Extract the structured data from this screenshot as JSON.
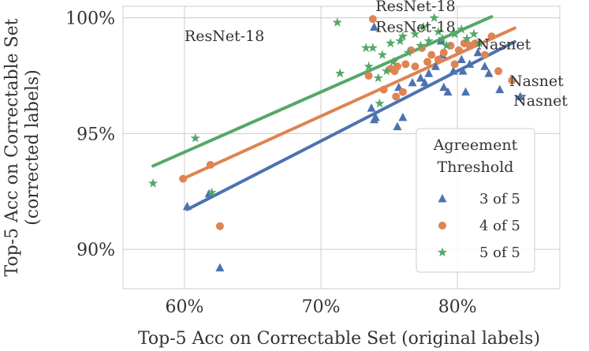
{
  "chart_data": {
    "type": "scatter",
    "xlabel": "Top-5 Acc on Correctable Set (original labels)",
    "ylabel_lines": [
      "Top-5 Acc on Correctable Set",
      "(corrected labels)"
    ],
    "xlim": [
      55.5,
      87.5
    ],
    "ylim": [
      88.3,
      100.5
    ],
    "x_ticks": [
      60,
      70,
      80
    ],
    "x_tick_labels": [
      "60%",
      "70%",
      "80%"
    ],
    "y_ticks": [
      90,
      95,
      100
    ],
    "y_tick_labels": [
      "90%",
      "95%",
      "100%"
    ],
    "grid": true,
    "legend": {
      "title_lines": [
        "Agreement",
        "Threshold"
      ],
      "position": "lower-right"
    },
    "series": [
      {
        "name": "3 of 5",
        "color": "#4c72b0",
        "marker": "triangle",
        "fit": {
          "x0": 60.2,
          "y0": 91.72,
          "x1": 84.2,
          "y1": 98.97
        },
        "points": [
          [
            60.2,
            91.85
          ],
          [
            61.8,
            92.4
          ],
          [
            62.6,
            89.2
          ],
          [
            73.7,
            96.1
          ],
          [
            73.9,
            95.6
          ],
          [
            74.0,
            95.7
          ],
          [
            73.9,
            99.6
          ],
          [
            75.6,
            95.3
          ],
          [
            76.0,
            95.7
          ],
          [
            75.7,
            97.0
          ],
          [
            76.7,
            97.2
          ],
          [
            77.3,
            97.4
          ],
          [
            77.6,
            97.2
          ],
          [
            77.9,
            97.6
          ],
          [
            78.4,
            97.9
          ],
          [
            78.9,
            98.4
          ],
          [
            79.0,
            97.0
          ],
          [
            79.3,
            96.8
          ],
          [
            79.7,
            97.7
          ],
          [
            80.3,
            98.2
          ],
          [
            80.4,
            97.7
          ],
          [
            80.6,
            96.8
          ],
          [
            80.9,
            98.0
          ],
          [
            81.5,
            98.5
          ],
          [
            82.0,
            97.9
          ],
          [
            82.3,
            97.6
          ],
          [
            83.1,
            96.9
          ],
          [
            84.6,
            96.6
          ],
          [
            78.8,
            99.0
          ]
        ]
      },
      {
        "name": "4 of 5",
        "color": "#dd8452",
        "marker": "circle",
        "fit": {
          "x0": 59.9,
          "y0": 93.05,
          "x1": 84.2,
          "y1": 99.56
        },
        "points": [
          [
            59.9,
            93.05
          ],
          [
            61.9,
            93.65
          ],
          [
            62.6,
            91.0
          ],
          [
            73.5,
            97.5
          ],
          [
            73.8,
            99.95
          ],
          [
            74.6,
            96.9
          ],
          [
            75.1,
            97.8
          ],
          [
            75.4,
            97.7
          ],
          [
            75.5,
            96.6
          ],
          [
            75.6,
            97.9
          ],
          [
            76.0,
            96.8
          ],
          [
            76.2,
            98.0
          ],
          [
            76.6,
            98.6
          ],
          [
            76.9,
            97.9
          ],
          [
            77.4,
            98.7
          ],
          [
            77.8,
            98.1
          ],
          [
            78.1,
            98.4
          ],
          [
            78.6,
            98.2
          ],
          [
            79.0,
            98.5
          ],
          [
            79.5,
            98.8
          ],
          [
            79.8,
            98.0
          ],
          [
            80.1,
            98.6
          ],
          [
            80.5,
            98.9
          ],
          [
            80.9,
            98.8
          ],
          [
            81.3,
            98.9
          ],
          [
            82.0,
            98.4
          ],
          [
            83.0,
            97.7
          ],
          [
            84.0,
            97.3
          ],
          [
            82.5,
            99.2
          ]
        ]
      },
      {
        "name": "5 of 5",
        "color": "#55a868",
        "marker": "star",
        "fit": {
          "x0": 57.7,
          "y0": 93.6,
          "x1": 82.5,
          "y1": 100.05
        },
        "points": [
          [
            57.7,
            92.85
          ],
          [
            60.8,
            94.8
          ],
          [
            62.0,
            92.45
          ],
          [
            71.2,
            99.8
          ],
          [
            71.4,
            97.6
          ],
          [
            73.3,
            98.7
          ],
          [
            73.5,
            97.9
          ],
          [
            73.8,
            98.7
          ],
          [
            74.2,
            97.4
          ],
          [
            74.5,
            98.4
          ],
          [
            74.8,
            97.7
          ],
          [
            75.1,
            98.9
          ],
          [
            75.3,
            98.1
          ],
          [
            75.8,
            99.0
          ],
          [
            76.0,
            99.2
          ],
          [
            76.4,
            98.5
          ],
          [
            76.9,
            99.3
          ],
          [
            77.3,
            98.8
          ],
          [
            77.5,
            99.6
          ],
          [
            77.9,
            99.0
          ],
          [
            78.3,
            100.0
          ],
          [
            78.6,
            99.4
          ],
          [
            78.9,
            99.1
          ],
          [
            79.2,
            98.8
          ],
          [
            79.8,
            99.3
          ],
          [
            80.3,
            99.5
          ],
          [
            80.7,
            99.1
          ],
          [
            81.2,
            99.3
          ],
          [
            81.6,
            98.9
          ],
          [
            74.3,
            96.3
          ]
        ]
      }
    ],
    "annotations": [
      {
        "text": "ResNet-18",
        "x": 74.0,
        "y": 100.3
      },
      {
        "text": "ResNet-18",
        "x": 74.0,
        "y": 99.4
      },
      {
        "text": "ResNet-18",
        "x": 60.0,
        "y": 99.0
      },
      {
        "text": "Nasnet",
        "x": 81.4,
        "y": 98.65
      },
      {
        "text": "Nasnet",
        "x": 83.8,
        "y": 97.05
      },
      {
        "text": "Nasnet",
        "x": 84.1,
        "y": 96.2
      }
    ]
  }
}
